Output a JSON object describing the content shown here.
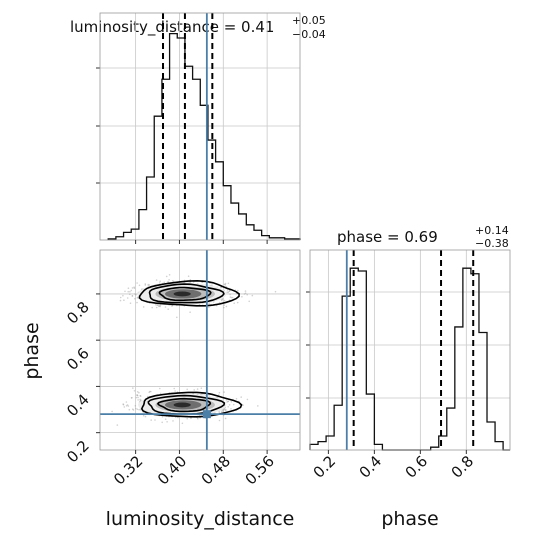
{
  "chart_data": {
    "type": "corner",
    "parameters": [
      "luminosity_distance",
      "phase"
    ],
    "truth": {
      "luminosity_distance": 0.45,
      "phase": 0.28,
      "color": "#4c7fa8"
    },
    "titles": [
      {
        "param": "luminosity_distance",
        "label": "luminosity_distance = 0.41",
        "sup": "+0.05",
        "sub": "−0.04"
      },
      {
        "param": "phase",
        "label": "phase = 0.69",
        "sup": "+0.14",
        "sub": "−0.38"
      }
    ],
    "axis_labels": {
      "x_bottom_left": "luminosity_distance",
      "x_bottom_right": "phase",
      "y_left_lower": "phase"
    },
    "marginal_luminosity_distance": {
      "xlim": [
        0.255,
        0.62
      ],
      "quantiles": [
        0.37,
        0.41,
        0.46
      ],
      "bin_edges": [
        0.27,
        0.284,
        0.298,
        0.312,
        0.326,
        0.34,
        0.354,
        0.368,
        0.382,
        0.396,
        0.41,
        0.424,
        0.438,
        0.452,
        0.466,
        0.48,
        0.494,
        0.508,
        0.522,
        0.536,
        0.55,
        0.564,
        0.578,
        0.592,
        0.606,
        0.62
      ],
      "counts": [
        0.5,
        1.5,
        3.5,
        5,
        14,
        29,
        57,
        74,
        95,
        93,
        80,
        74,
        62,
        46,
        36,
        25,
        17,
        12,
        7,
        4.5,
        2,
        1,
        1,
        0.5,
        0.5
      ]
    },
    "marginal_phase": {
      "xlim": [
        0.12,
        0.99
      ],
      "quantiles": [
        0.31,
        0.69,
        0.83
      ],
      "bin_edges": [
        0.12,
        0.155,
        0.19,
        0.225,
        0.26,
        0.295,
        0.33,
        0.365,
        0.4,
        0.435,
        0.47,
        0.505,
        0.54,
        0.575,
        0.61,
        0.645,
        0.68,
        0.715,
        0.75,
        0.785,
        0.82,
        0.855,
        0.89,
        0.925,
        0.96,
        0.99
      ],
      "counts": [
        2,
        3,
        5,
        16,
        55,
        65,
        64,
        20,
        2,
        0,
        0,
        0,
        0,
        0,
        0,
        1,
        5,
        15,
        44,
        65,
        63,
        42,
        10,
        3,
        0
      ]
    },
    "joint": {
      "xlim": [
        0.255,
        0.62
      ],
      "ylim": [
        0.125,
        0.99
      ],
      "modes": [
        {
          "x": 0.405,
          "y": 0.8,
          "sx": 0.035,
          "sy": 0.025
        },
        {
          "x": 0.405,
          "y": 0.32,
          "sx": 0.035,
          "sy": 0.025
        }
      ],
      "contour_levels": [
        0.5,
        1.0,
        1.6
      ],
      "density_points": 1600
    },
    "ticks": {
      "luminosity_distance": [
        0.32,
        0.4,
        0.48,
        0.56
      ],
      "luminosity_distance_labels": [
        "0.32",
        "0.40",
        "0.48",
        "0.56"
      ],
      "phase": [
        0.2,
        0.4,
        0.6,
        0.8
      ],
      "phase_labels": [
        "0.2",
        "0.4",
        "0.6",
        "0.8"
      ]
    }
  }
}
